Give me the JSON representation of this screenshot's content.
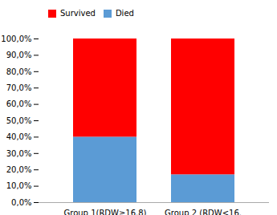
{
  "chart_data": {
    "type": "bar",
    "stacked": true,
    "categories": [
      "Group 1(RDW≥16.8)",
      "Group 2 (RDW<16."
    ],
    "series": [
      {
        "name": "Died",
        "color": "#5B9BD5",
        "values": [
          40.0,
          17.0
        ]
      },
      {
        "name": "Survived",
        "color": "#FF0000",
        "values": [
          60.0,
          83.0
        ]
      }
    ],
    "ylim": [
      0,
      100
    ],
    "yticks": [
      {
        "value": 0,
        "label": "0,0%"
      },
      {
        "value": 10,
        "label": "10,0%"
      },
      {
        "value": 20,
        "label": "20,0%"
      },
      {
        "value": 30,
        "label": "30,0%"
      },
      {
        "value": 40,
        "label": "40,0%"
      },
      {
        "value": 50,
        "label": "50,0%"
      },
      {
        "value": 60,
        "label": "60,0%"
      },
      {
        "value": 70,
        "label": "70,0%"
      },
      {
        "value": 80,
        "label": "80,0%"
      },
      {
        "value": 90,
        "label": "90,0%"
      },
      {
        "value": 100,
        "label": "100,0%"
      }
    ],
    "grid": false,
    "legend": "upper left"
  }
}
